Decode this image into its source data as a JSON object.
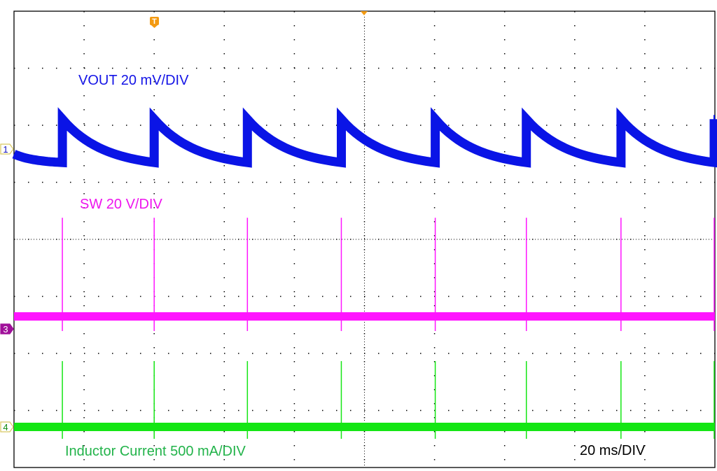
{
  "chart_data": {
    "type": "line",
    "title": "",
    "grid": true,
    "x_divisions": 10,
    "y_divisions": 8,
    "timebase_label": "20 ms/DIV",
    "x_unit": "ms",
    "xlim": [
      0,
      200
    ],
    "trigger_marker": "T",
    "pulse_times_ms": [
      13.8,
      40.0,
      66.6,
      93.4,
      120.2,
      146.2,
      173.2,
      199.8
    ],
    "series": [
      {
        "name": "VOUT  20 mV/DIV",
        "channel": "1",
        "color": "#0a14e6",
        "kind": "sawtooth",
        "high_mV": 10.5,
        "low_mV": -4.7,
        "scale_per_div": 20
      },
      {
        "name": "SW  20 V/DIV",
        "channel": "3",
        "color": "#ff14ff",
        "kind": "pulses",
        "baseline_V": 4.4,
        "spike_V": 39,
        "scale_per_div": 20
      },
      {
        "name": "Inductor Current  500 mA/DIV",
        "channel": "4",
        "color": "#14e614",
        "kind": "pulses",
        "baseline_mA": 0,
        "spike_mA": 577,
        "scale_per_div": 500
      }
    ],
    "channel_marker_colors": {
      "1": "#1010c0",
      "3": "#a0109a",
      "4": "#108a10"
    },
    "label_colors": {
      "VOUT": "#1414e6",
      "SW": "#ee14ee",
      "Inductor Current": "#22b34a",
      "timebase": "#000000"
    }
  }
}
